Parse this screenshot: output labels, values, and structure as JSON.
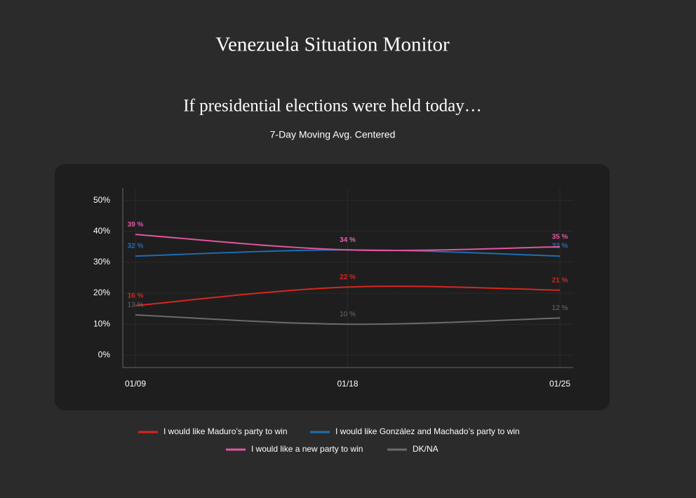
{
  "header": {
    "title": "Venezuela Situation Monitor"
  },
  "chart_data": {
    "type": "line",
    "title": "If presidential elections were held today…",
    "subtitle": "7-Day Moving Avg. Centered",
    "categories": [
      "01/09",
      "01/18",
      "01/25"
    ],
    "series": [
      {
        "name": "I would like Maduro’s party to win",
        "color": "#d7261e",
        "values": [
          16,
          22,
          21
        ],
        "value_labels": [
          "16 %",
          "22 %",
          "21 %"
        ]
      },
      {
        "name": "I would like González and Machado’s party to win",
        "color": "#1f6db3",
        "values": [
          32,
          34,
          32
        ],
        "value_labels": [
          "32 %",
          "34 %",
          "32 %"
        ]
      },
      {
        "name": "I would like a new party to win",
        "color": "#e2559f",
        "values": [
          39,
          34,
          35
        ],
        "value_labels": [
          "39 %",
          "34 %",
          "35 %"
        ]
      },
      {
        "name": "DK/NA",
        "color": "#6b6b6b",
        "values": [
          13,
          10,
          12
        ],
        "value_labels": [
          "13 %",
          "10 %",
          "12 %"
        ]
      }
    ],
    "ylim": [
      -4,
      54
    ],
    "yticks": [
      {
        "value": 0,
        "label": "0%"
      },
      {
        "value": 10,
        "label": "10%"
      },
      {
        "value": 20,
        "label": "20%"
      },
      {
        "value": 30,
        "label": "30%"
      },
      {
        "value": 40,
        "label": "40%"
      },
      {
        "value": 50,
        "label": "50%"
      }
    ],
    "grid": true
  }
}
